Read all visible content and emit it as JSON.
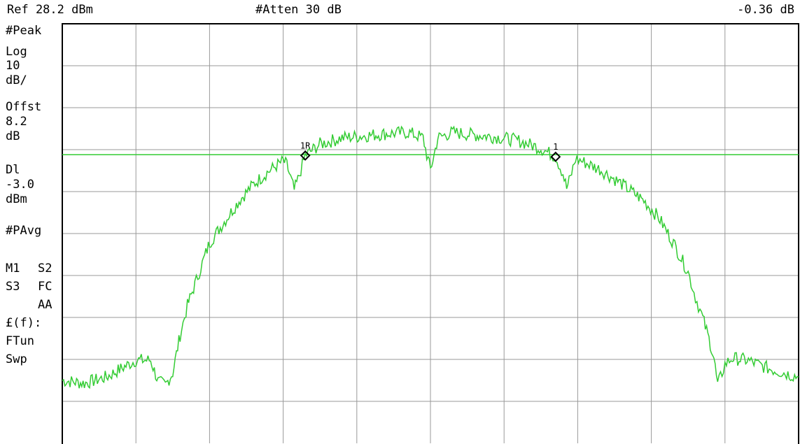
{
  "header": {
    "ref_level": "Ref 28.2 dBm",
    "attenuation": "#Atten 30 dB",
    "marker_delta": "-0.36 dB"
  },
  "sidebar": {
    "detector": "#Peak",
    "scale_type": "Log",
    "scale_value": "10",
    "scale_unit": "dB/",
    "offset_label": "Offst",
    "offset_value": "8.2",
    "offset_unit": "dB",
    "display_line_label": "Dl",
    "display_line_value": "-3.0",
    "display_line_unit": "dBm",
    "averaging": "#PAvg",
    "trace_m1": "M1",
    "trace_s2": "S2",
    "trace_s3": "S3",
    "trace_fc": "FC",
    "trace_aa": "AA",
    "func_label": "£(f):",
    "ftun": "FTun",
    "swp": "Swp"
  },
  "colors": {
    "trace": "#33cc33",
    "display_line": "#33cc33",
    "grid": "#999999",
    "border": "#000000",
    "marker": "#000000"
  },
  "chart_data": {
    "type": "line",
    "x_unit": "division",
    "xlim": [
      0,
      10
    ],
    "y_unit": "dBm",
    "ylim": [
      -71.8,
      28.2
    ],
    "grid_divisions": [
      10,
      10
    ],
    "grid": true,
    "display_line": -3.0,
    "markers": [
      {
        "label": "1R",
        "x": 3.3,
        "y": -3.2
      },
      {
        "label": "1",
        "x": 6.7,
        "y": -3.5
      }
    ],
    "series": [
      {
        "values": [
          [
            0.0,
            -56.8
          ],
          [
            0.3,
            -57.5
          ],
          [
            0.6,
            -56.0
          ],
          [
            0.9,
            -53.0
          ],
          [
            1.0,
            -52.0
          ],
          [
            1.2,
            -52.0
          ],
          [
            1.3,
            -57.0
          ],
          [
            1.4,
            -58.0
          ],
          [
            1.5,
            -55.0
          ],
          [
            1.6,
            -46.0
          ],
          [
            1.7,
            -39.0
          ],
          [
            1.8,
            -34.0
          ],
          [
            1.9,
            -29.0
          ],
          [
            2.0,
            -24.0
          ],
          [
            2.2,
            -19.0
          ],
          [
            2.4,
            -14.0
          ],
          [
            2.6,
            -10.0
          ],
          [
            2.8,
            -7.0
          ],
          [
            3.0,
            -4.5
          ],
          [
            3.05,
            -5.5
          ],
          [
            3.1,
            -8.5
          ],
          [
            3.15,
            -11.5
          ],
          [
            3.2,
            -9.0
          ],
          [
            3.3,
            -3.2
          ],
          [
            3.5,
            -0.5
          ],
          [
            3.8,
            1.0
          ],
          [
            4.1,
            1.5
          ],
          [
            4.4,
            2.0
          ],
          [
            4.7,
            2.3
          ],
          [
            4.9,
            1.0
          ],
          [
            4.95,
            -3.0
          ],
          [
            5.0,
            -6.5
          ],
          [
            5.05,
            -3.0
          ],
          [
            5.1,
            1.0
          ],
          [
            5.3,
            2.3
          ],
          [
            5.6,
            1.7
          ],
          [
            5.9,
            1.2
          ],
          [
            6.2,
            0.3
          ],
          [
            6.5,
            -1.5
          ],
          [
            6.7,
            -3.5
          ],
          [
            6.8,
            -7.5
          ],
          [
            6.85,
            -11.0
          ],
          [
            6.9,
            -8.5
          ],
          [
            6.97,
            -4.0
          ],
          [
            7.05,
            -4.5
          ],
          [
            7.3,
            -6.5
          ],
          [
            7.6,
            -10.0
          ],
          [
            7.9,
            -14.0
          ],
          [
            8.1,
            -18.0
          ],
          [
            8.3,
            -24.0
          ],
          [
            8.5,
            -31.0
          ],
          [
            8.6,
            -37.0
          ],
          [
            8.7,
            -42.0
          ],
          [
            8.8,
            -48.0
          ],
          [
            8.85,
            -51.5
          ],
          [
            8.9,
            -58.0
          ],
          [
            9.0,
            -53.0
          ],
          [
            9.1,
            -51.5
          ],
          [
            9.3,
            -52.0
          ],
          [
            9.6,
            -54.0
          ],
          [
            10.0,
            -56.0
          ]
        ]
      }
    ]
  }
}
